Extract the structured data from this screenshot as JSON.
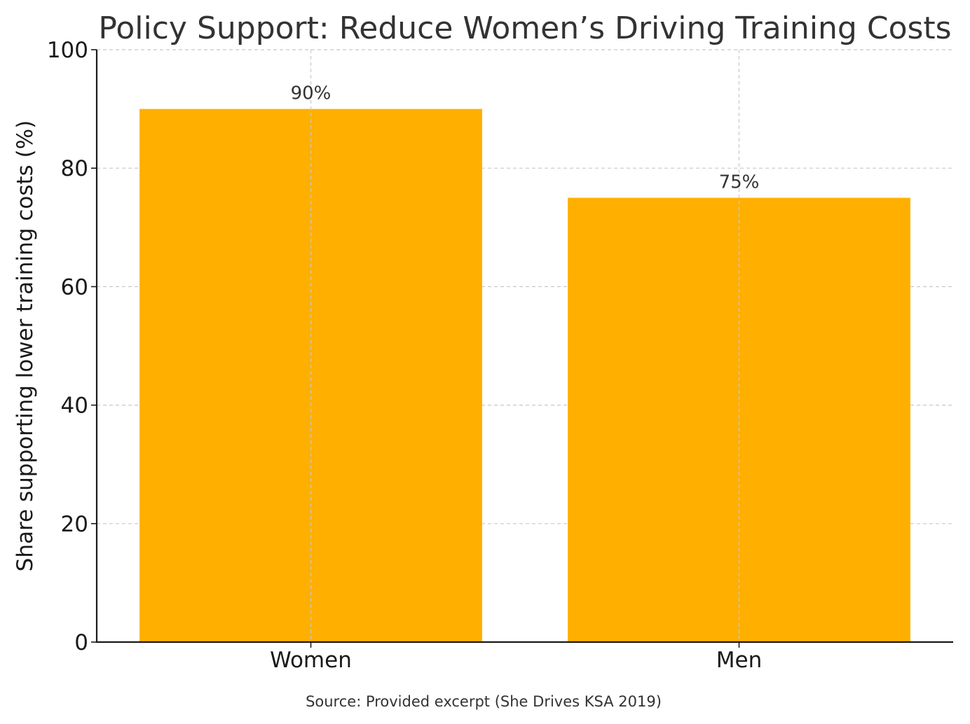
{
  "chart_data": {
    "type": "bar",
    "title": "Policy Support: Reduce Women’s Driving Training Costs",
    "xlabel": "",
    "ylabel": "Share supporting lower training costs (%)",
    "categories": [
      "Women",
      "Men"
    ],
    "values": [
      90,
      75
    ],
    "value_labels": [
      "90%",
      "75%"
    ],
    "ylim": [
      0,
      100
    ],
    "yticks": [
      0,
      20,
      40,
      60,
      80,
      100
    ],
    "ytick_labels": [
      "0",
      "20",
      "40",
      "60",
      "80",
      "100"
    ],
    "grid": true,
    "bar_color": "#FFAF00",
    "source": "Source: Provided excerpt (She Drives KSA 2019)"
  }
}
